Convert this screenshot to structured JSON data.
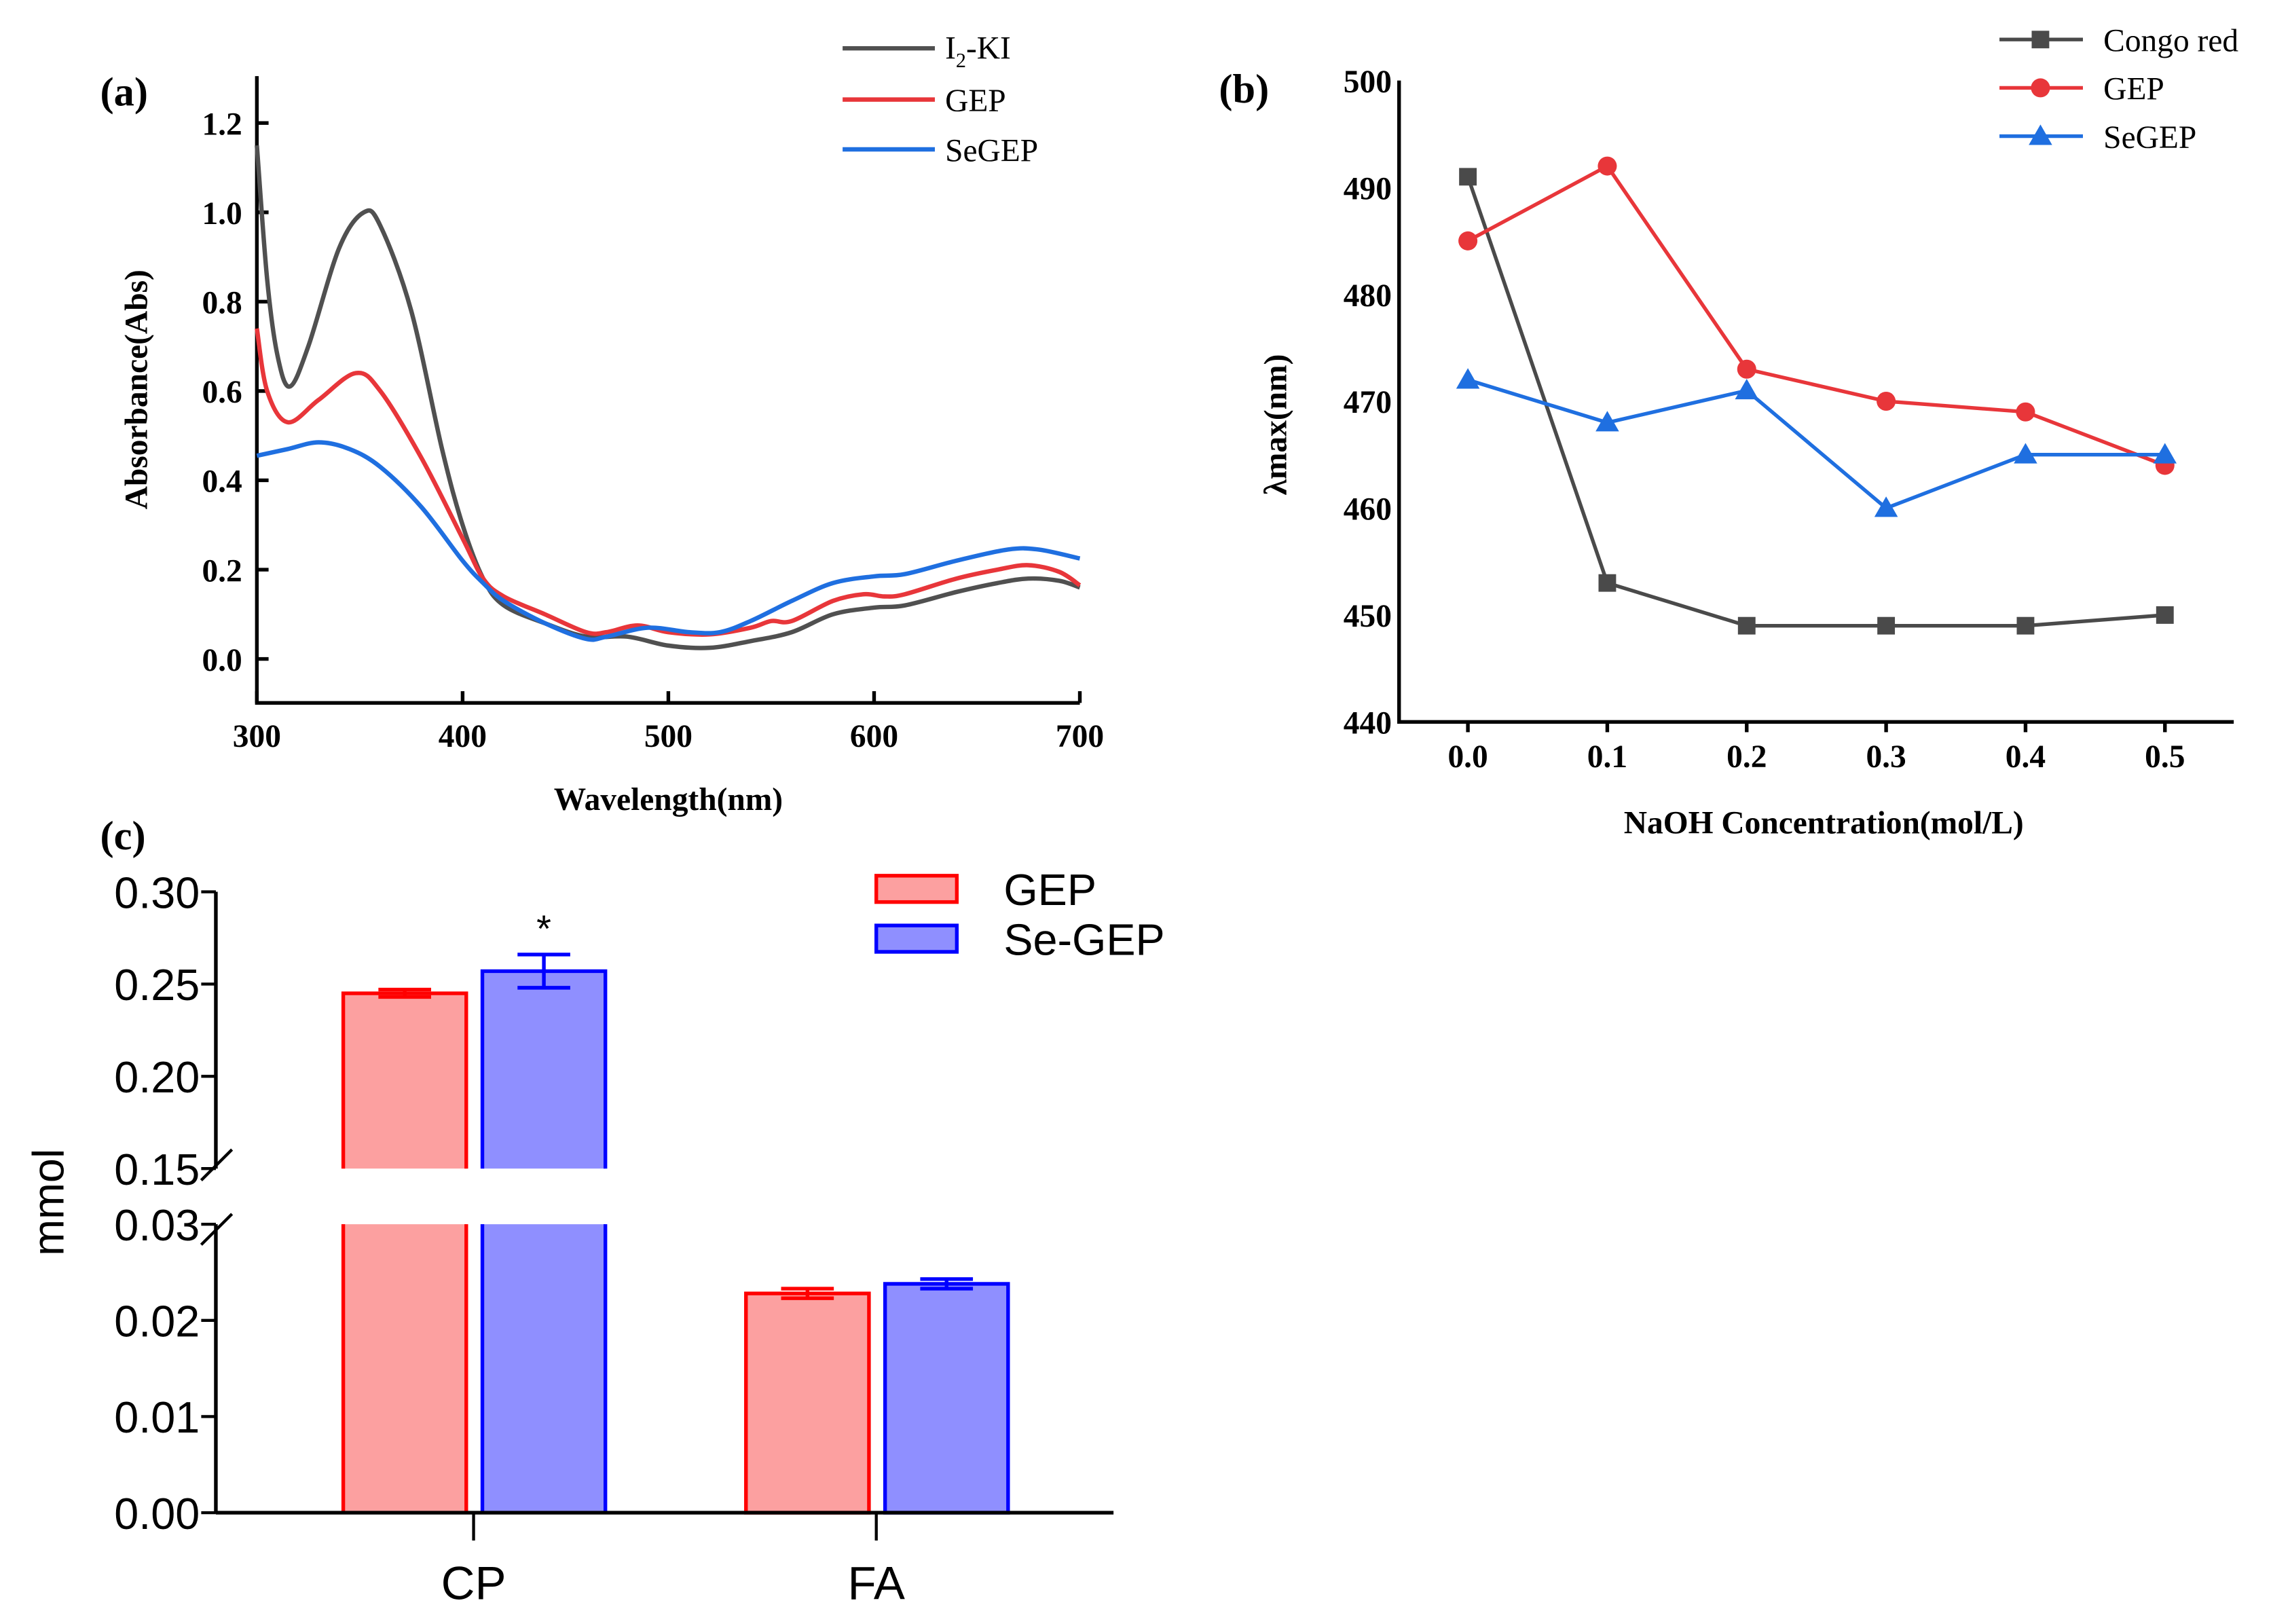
{
  "chart_data": [
    {
      "panel": "(a)",
      "type": "line",
      "xlabel": "Wavelength(nm)",
      "ylabel": "Absorbance(Abs)",
      "xlim": [
        300,
        700
      ],
      "ylim": [
        -0.1,
        1.3
      ],
      "xticks": [
        "300",
        "400",
        "500",
        "600",
        "700"
      ],
      "yticks": [
        "0.0",
        "0.2",
        "0.4",
        "0.6",
        "0.8",
        "1.0",
        "1.2"
      ],
      "legend_position": "top-right",
      "series": [
        {
          "name": "I2-KI",
          "name_main": "I",
          "name_sub": "2",
          "name_rest": "-KI",
          "color": "#505050",
          "x": [
            300,
            305,
            310,
            316,
            325,
            340,
            352,
            360,
            375,
            390,
            400,
            410,
            420,
            440,
            460,
            480,
            500,
            520,
            540,
            560,
            580,
            600,
            615,
            640,
            660,
            675,
            690,
            700
          ],
          "y": [
            1.15,
            0.85,
            0.68,
            0.61,
            0.7,
            0.92,
            1.0,
            0.97,
            0.78,
            0.47,
            0.3,
            0.18,
            0.12,
            0.08,
            0.05,
            0.05,
            0.03,
            0.025,
            0.04,
            0.06,
            0.1,
            0.115,
            0.12,
            0.15,
            0.17,
            0.18,
            0.175,
            0.16
          ]
        },
        {
          "name": "GEP",
          "color": "#e8363a",
          "x": [
            300,
            305,
            315,
            330,
            348,
            360,
            380,
            400,
            410,
            420,
            440,
            460,
            470,
            485,
            500,
            520,
            540,
            550,
            560,
            580,
            595,
            605,
            615,
            640,
            660,
            675,
            690,
            700
          ],
          "y": [
            0.74,
            0.6,
            0.53,
            0.58,
            0.64,
            0.6,
            0.45,
            0.27,
            0.18,
            0.14,
            0.1,
            0.06,
            0.06,
            0.075,
            0.06,
            0.055,
            0.07,
            0.085,
            0.085,
            0.13,
            0.145,
            0.14,
            0.145,
            0.18,
            0.2,
            0.21,
            0.195,
            0.165
          ]
        },
        {
          "name": "SeGEP",
          "color": "#1f6fe0",
          "x": [
            300,
            315,
            330,
            345,
            360,
            380,
            400,
            410,
            420,
            440,
            460,
            470,
            490,
            510,
            525,
            540,
            560,
            580,
            600,
            615,
            640,
            665,
            680,
            700
          ],
          "y": [
            0.455,
            0.47,
            0.485,
            0.47,
            0.43,
            0.34,
            0.22,
            0.17,
            0.13,
            0.08,
            0.045,
            0.05,
            0.07,
            0.06,
            0.06,
            0.085,
            0.13,
            0.17,
            0.185,
            0.19,
            0.22,
            0.245,
            0.245,
            0.225
          ]
        }
      ]
    },
    {
      "panel": "(b)",
      "type": "line",
      "xlabel": "NaOH Concentration(mol/L)",
      "ylabel": "λmax(nm)",
      "ylim": [
        440,
        500
      ],
      "categories": [
        "0.0",
        "0.1",
        "0.2",
        "0.3",
        "0.4",
        "0.5"
      ],
      "yticks": [
        "440",
        "450",
        "460",
        "470",
        "480",
        "490",
        "500"
      ],
      "legend_position": "top-right",
      "series": [
        {
          "name": "Congo red",
          "color": "#4a4a4a",
          "marker": "square",
          "values": [
            491,
            453,
            449,
            449,
            449,
            450
          ]
        },
        {
          "name": "GEP",
          "color": "#e8363a",
          "marker": "circle",
          "values": [
            485,
            492,
            473,
            470,
            469,
            464
          ]
        },
        {
          "name": "SeGEP",
          "color": "#1f6fe0",
          "marker": "triangle",
          "values": [
            472,
            468,
            471,
            460,
            465,
            465
          ]
        }
      ]
    },
    {
      "panel": "(c)",
      "type": "bar",
      "ylabel": "mmol",
      "categories": [
        "CP",
        "FA"
      ],
      "axis_break": [
        0.03,
        0.15
      ],
      "yticks_upper": [
        "0.15",
        "0.20",
        "0.25",
        "0.30"
      ],
      "yticks_lower": [
        "0.00",
        "0.01",
        "0.02",
        "0.03"
      ],
      "legend_position": "top-right",
      "annotation": "*",
      "series": [
        {
          "name": "GEP",
          "fill": "#fca0a0",
          "stroke": "#ff0000",
          "values": [
            0.245,
            0.0228
          ],
          "errors": [
            0.002,
            0.0005
          ]
        },
        {
          "name": "Se-GEP",
          "fill": "#8f8fff",
          "stroke": "#0000ff",
          "values": [
            0.257,
            0.0238
          ],
          "errors": [
            0.009,
            0.0005
          ]
        }
      ]
    }
  ]
}
